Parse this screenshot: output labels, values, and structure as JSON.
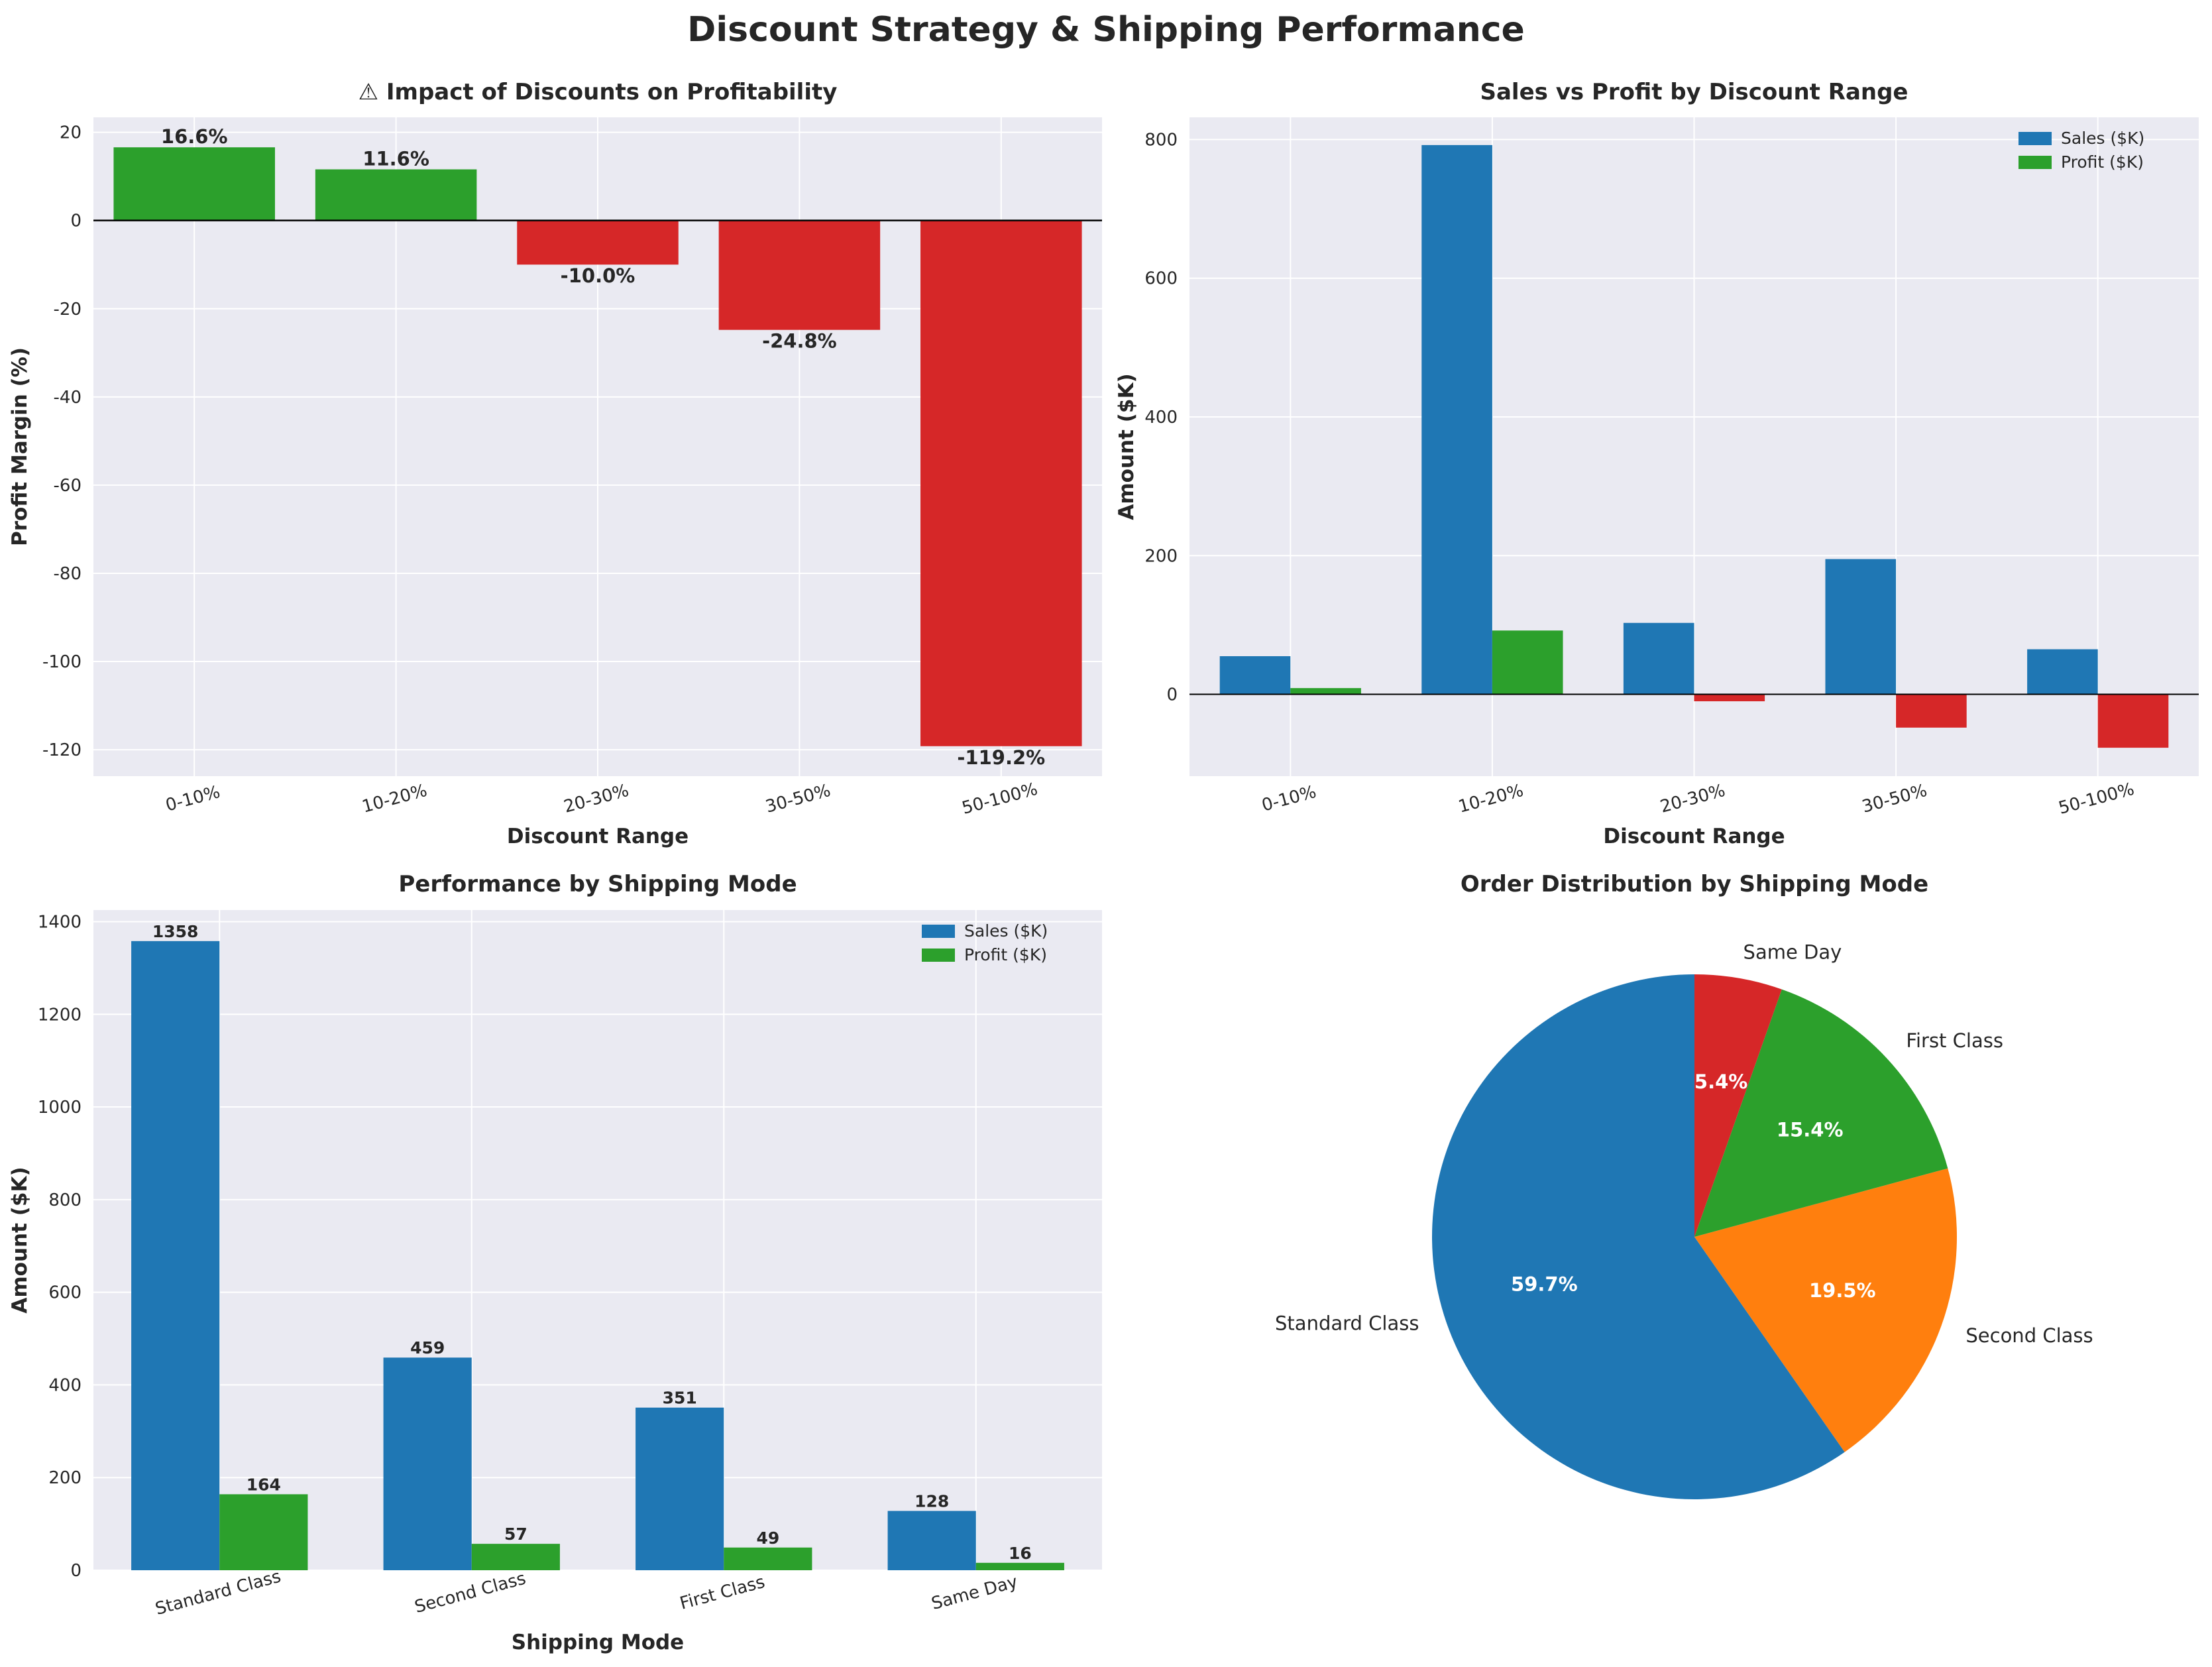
{
  "figure": {
    "title": "Discount Strategy & Shipping Performance"
  },
  "colors": {
    "positive": "#2ca02c",
    "negative": "#d62728",
    "sales": "#1f77b4",
    "profit": "#2ca02c",
    "orange": "#ff7f0e",
    "panel_bg": "#eaeaf2",
    "grid": "#ffffff"
  },
  "chart_data": [
    {
      "id": "margin",
      "type": "bar",
      "title": "⚠ Impact of Discounts on Profitability",
      "xlabel": "Discount Range",
      "ylabel": "Profit Margin (%)",
      "categories": [
        "0-10%",
        "10-20%",
        "20-30%",
        "30-50%",
        "50-100%"
      ],
      "values": [
        16.6,
        11.6,
        -10.0,
        -24.8,
        -119.2
      ],
      "data_labels": [
        "16.6%",
        "11.6%",
        "-10.0%",
        "-24.8%",
        "-119.2%"
      ],
      "ylim": [
        -126.0,
        23.4
      ],
      "yticks": [
        20,
        0,
        -20,
        -40,
        -60,
        -80,
        -100,
        -120
      ]
    },
    {
      "id": "sales-profit-discount",
      "type": "bar",
      "title": "Sales vs Profit by Discount Range",
      "xlabel": "Discount Range",
      "ylabel": "Amount ($K)",
      "categories": [
        "0-10%",
        "10-20%",
        "20-30%",
        "30-50%",
        "50-100%"
      ],
      "series": [
        {
          "name": "Sales ($K)",
          "values": [
            55,
            792,
            103,
            195,
            65
          ]
        },
        {
          "name": "Profit ($K)",
          "values": [
            9,
            92,
            -10,
            -48,
            -77
          ]
        }
      ],
      "ylim": [
        -118,
        832
      ],
      "yticks": [
        800,
        600,
        400,
        200,
        0
      ],
      "legend": "top-right"
    },
    {
      "id": "shipping-performance",
      "type": "bar",
      "title": "Performance by Shipping Mode",
      "xlabel": "Shipping Mode",
      "ylabel": "Amount ($K)",
      "categories": [
        "Standard Class",
        "Second Class",
        "First Class",
        "Same Day"
      ],
      "series": [
        {
          "name": "Sales ($K)",
          "values": [
            1358,
            459,
            351,
            128
          ]
        },
        {
          "name": "Profit ($K)",
          "values": [
            164,
            57,
            49,
            16
          ]
        }
      ],
      "ylim": [
        0,
        1425
      ],
      "yticks": [
        1400,
        1200,
        1000,
        800,
        600,
        400,
        200,
        0
      ],
      "legend": "top-right"
    },
    {
      "id": "order-distribution",
      "type": "pie",
      "title": "Order Distribution by Shipping Mode",
      "labels": [
        "Standard Class",
        "Second Class",
        "First Class",
        "Same Day"
      ],
      "values": [
        59.7,
        19.5,
        15.4,
        5.4
      ],
      "data_labels": [
        "59.7%",
        "19.5%",
        "15.4%",
        "5.4%"
      ]
    }
  ]
}
